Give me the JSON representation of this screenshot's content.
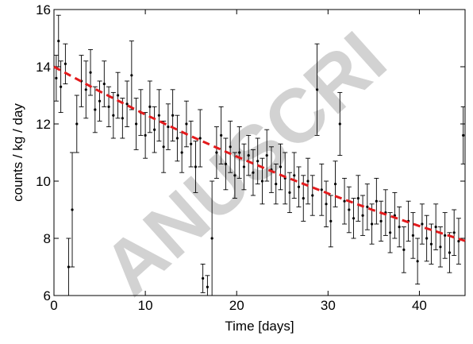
{
  "chart_data": {
    "type": "scatter",
    "xlabel": "Time [days]",
    "ylabel": "counts / kg / day",
    "watermark": "ANUSCRI",
    "xlim": [
      0,
      45
    ],
    "xticks": [
      0,
      10,
      20,
      30,
      40
    ],
    "ylim": [
      6,
      16
    ],
    "yticks": [
      6,
      8,
      10,
      12,
      14,
      16
    ],
    "series": [
      {
        "color": "#000000",
        "x": [
          0.25,
          0.5,
          0.75,
          1.25,
          1.6,
          2.0,
          2.5,
          3.0,
          3.5,
          4.0,
          4.5,
          5.0,
          5.5,
          6.0,
          6.5,
          7.0,
          7.5,
          8.0,
          8.5,
          9.0,
          9.5,
          10.0,
          10.5,
          11.0,
          11.5,
          12.0,
          12.5,
          13.0,
          13.5,
          14.0,
          14.5,
          15.0,
          15.5,
          16.0,
          16.3,
          16.8,
          17.3,
          17.8,
          18.3,
          18.8,
          19.3,
          19.8,
          20.3,
          20.8,
          21.3,
          21.8,
          22.3,
          22.8,
          23.3,
          23.8,
          24.3,
          24.8,
          25.3,
          25.8,
          26.3,
          26.8,
          27.3,
          27.8,
          28.3,
          28.8,
          29.3,
          29.8,
          30.3,
          30.8,
          31.3,
          31.8,
          32.3,
          32.8,
          33.3,
          33.8,
          34.3,
          34.8,
          35.3,
          35.8,
          36.3,
          36.8,
          37.3,
          37.8,
          38.3,
          38.8,
          39.3,
          39.8,
          40.3,
          40.8,
          41.3,
          41.8,
          42.3,
          42.8,
          43.3,
          43.8,
          44.3,
          44.8
        ],
        "values": [
          13.6,
          14.9,
          13.3,
          14.1,
          7.0,
          9.0,
          12.0,
          13.5,
          13.2,
          13.8,
          12.5,
          12.8,
          13.4,
          12.6,
          12.3,
          13.0,
          12.2,
          12.7,
          13.7,
          12.0,
          12.4,
          11.6,
          12.6,
          11.8,
          12.3,
          11.2,
          11.9,
          12.3,
          11.5,
          11.0,
          12.0,
          11.3,
          10.5,
          11.5,
          6.6,
          6.3,
          8.0,
          11.0,
          11.6,
          10.6,
          11.2,
          10.2,
          11.0,
          10.5,
          10.9,
          10.3,
          10.7,
          10.0,
          10.9,
          10.4,
          9.9,
          10.5,
          10.1,
          9.6,
          10.2,
          9.8,
          9.4,
          10.0,
          9.5,
          13.2,
          9.7,
          9.2,
          8.6,
          9.9,
          12.0,
          9.3,
          9.0,
          8.7,
          9.4,
          8.8,
          9.1,
          8.5,
          9.3,
          8.6,
          8.9,
          8.2,
          8.8,
          8.4,
          7.6,
          8.6,
          8.1,
          7.2,
          8.5,
          8.0,
          7.8,
          8.4,
          7.7,
          8.1,
          7.5,
          8.2,
          7.9,
          11.6
        ],
        "errors": [
          0.8,
          0.9,
          0.9,
          0.7,
          1.0,
          2.0,
          1.0,
          0.9,
          1.0,
          0.8,
          0.8,
          0.7,
          0.8,
          0.7,
          0.8,
          0.8,
          0.7,
          0.8,
          1.2,
          0.9,
          0.8,
          0.8,
          0.9,
          0.8,
          0.9,
          0.9,
          0.8,
          0.9,
          0.8,
          0.7,
          0.8,
          0.8,
          0.9,
          1.0,
          0.5,
          0.4,
          2.0,
          0.9,
          1.0,
          0.9,
          0.9,
          0.8,
          0.9,
          0.8,
          0.7,
          0.8,
          0.8,
          0.8,
          0.9,
          0.8,
          0.7,
          0.8,
          0.9,
          0.7,
          0.8,
          0.7,
          0.8,
          0.8,
          0.7,
          1.6,
          0.9,
          0.8,
          0.9,
          0.8,
          1.1,
          0.8,
          0.8,
          0.7,
          0.8,
          0.7,
          0.8,
          0.7,
          0.8,
          0.7,
          0.8,
          0.7,
          0.8,
          0.7,
          0.8,
          0.7,
          0.8,
          0.8,
          0.7,
          0.8,
          0.7,
          0.8,
          0.7,
          0.8,
          0.7,
          0.8,
          0.8,
          1.0
        ]
      },
      {
        "color": "#e31a1c",
        "style": "dashed",
        "x": [
          0,
          5,
          10,
          15,
          20,
          25,
          30,
          35,
          40,
          45
        ],
        "values": [
          14.0,
          13.14,
          12.33,
          11.57,
          10.86,
          10.19,
          9.57,
          8.98,
          8.43,
          7.91
        ]
      }
    ]
  }
}
